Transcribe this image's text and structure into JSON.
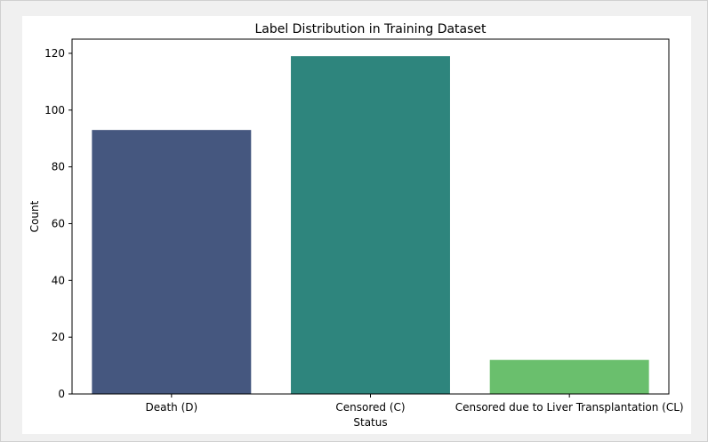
{
  "chart_data": {
    "type": "bar",
    "title": "Label Distribution in Training Dataset",
    "xlabel": "Status",
    "ylabel": "Count",
    "categories": [
      "Death (D)",
      "Censored (C)",
      "Censored due to Liver Transplantation (CL)"
    ],
    "values": [
      93,
      119,
      12
    ],
    "colors": [
      "#45577f",
      "#2e857d",
      "#6abf6d"
    ],
    "ylim": [
      0,
      125
    ],
    "yticks": [
      0,
      20,
      40,
      60,
      80,
      100,
      120
    ],
    "ytick_labels": [
      "0",
      "20",
      "40",
      "60",
      "80",
      "100",
      "120"
    ],
    "grid": false,
    "legend": "none"
  }
}
